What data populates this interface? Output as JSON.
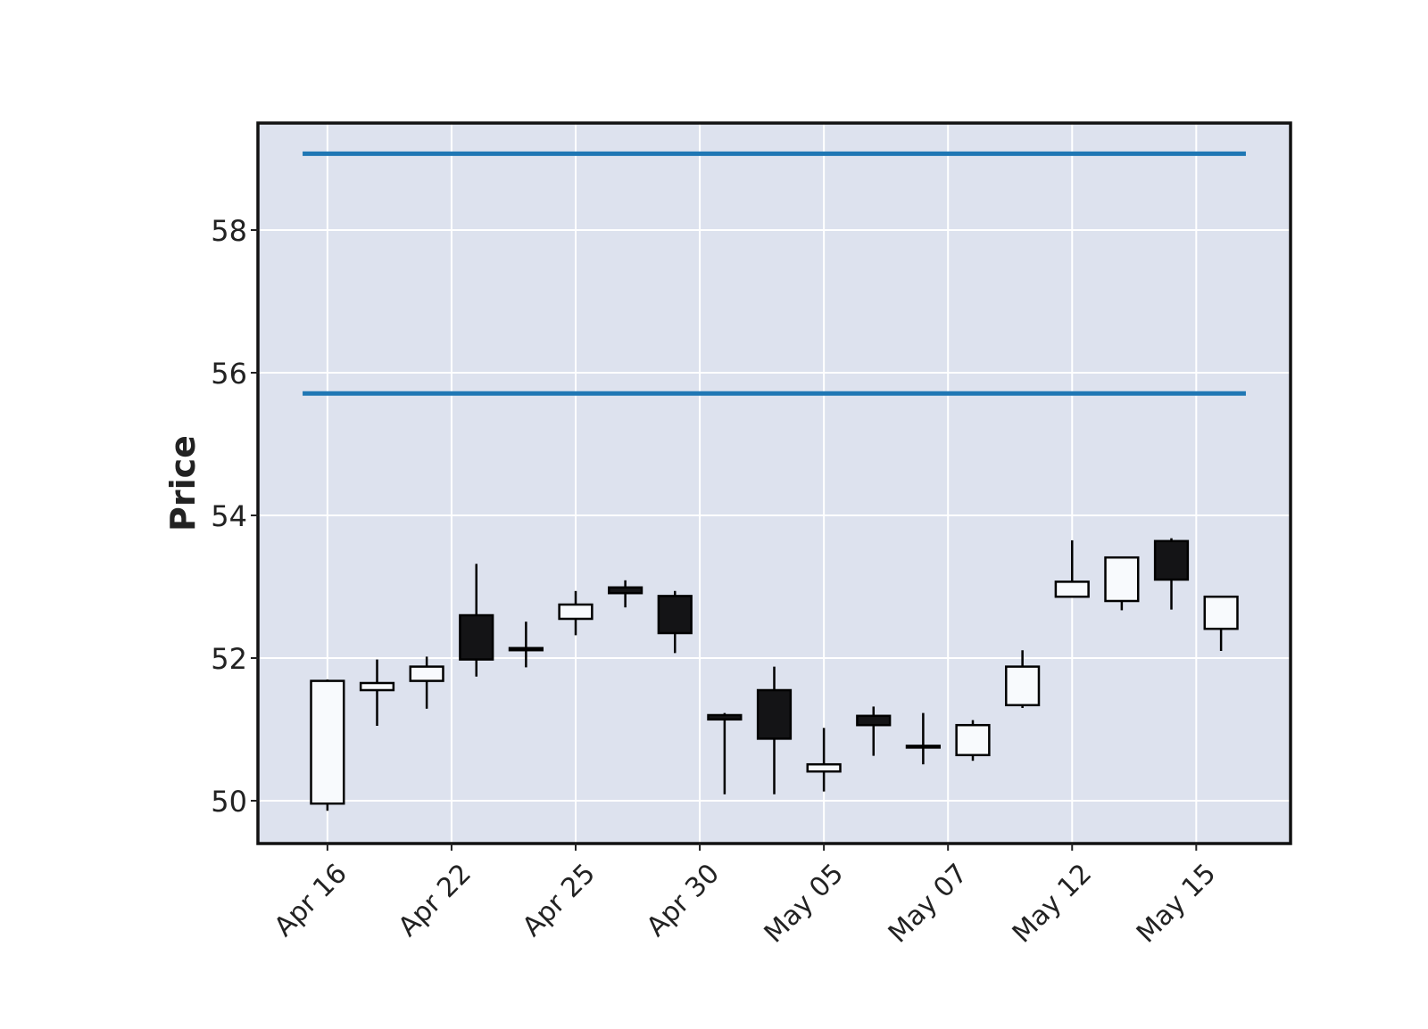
{
  "chart_data": {
    "type": "candlestick",
    "title": "",
    "xlabel": "",
    "ylabel": "Price",
    "ylim": [
      49.4,
      59.5
    ],
    "grid": true,
    "background_color": "#dde2ee",
    "up_color": "#f8fafd",
    "down_color": "#141416",
    "hline_color": "#1f77b4",
    "hlines": [
      59.07,
      55.71
    ],
    "yticks": [
      50,
      52,
      54,
      56,
      58
    ],
    "xtick_labels": [
      "Apr 16",
      "Apr 22",
      "Apr 25",
      "Apr 30",
      "May 05",
      "May 07",
      "May 12",
      "May 15"
    ],
    "xtick_indices": [
      0,
      2.5,
      5,
      7.5,
      10,
      12.5,
      15,
      17.5
    ],
    "candles": [
      {
        "open": 49.96,
        "high": 51.7,
        "low": 49.86,
        "close": 51.68
      },
      {
        "open": 51.55,
        "high": 51.98,
        "low": 51.05,
        "close": 51.65
      },
      {
        "open": 51.68,
        "high": 52.02,
        "low": 51.29,
        "close": 51.88
      },
      {
        "open": 52.6,
        "high": 53.32,
        "low": 51.74,
        "close": 51.98
      },
      {
        "open": 52.14,
        "high": 52.51,
        "low": 51.87,
        "close": 52.11
      },
      {
        "open": 52.55,
        "high": 52.94,
        "low": 52.32,
        "close": 52.75
      },
      {
        "open": 52.99,
        "high": 53.09,
        "low": 52.71,
        "close": 52.91
      },
      {
        "open": 52.87,
        "high": 52.94,
        "low": 52.07,
        "close": 52.35
      },
      {
        "open": 51.2,
        "high": 51.23,
        "low": 50.09,
        "close": 51.14
      },
      {
        "open": 51.55,
        "high": 51.88,
        "low": 50.09,
        "close": 50.87
      },
      {
        "open": 50.41,
        "high": 51.02,
        "low": 50.13,
        "close": 50.51
      },
      {
        "open": 51.19,
        "high": 51.32,
        "low": 50.63,
        "close": 51.06
      },
      {
        "open": 50.75,
        "high": 51.23,
        "low": 50.51,
        "close": 50.77
      },
      {
        "open": 50.64,
        "high": 51.13,
        "low": 50.56,
        "close": 51.06
      },
      {
        "open": 51.34,
        "high": 52.11,
        "low": 51.3,
        "close": 51.88
      },
      {
        "open": 52.86,
        "high": 53.65,
        "low": 52.86,
        "close": 53.07
      },
      {
        "open": 52.8,
        "high": 53.41,
        "low": 52.67,
        "close": 53.41
      },
      {
        "open": 53.64,
        "high": 53.68,
        "low": 52.68,
        "close": 53.1
      },
      {
        "open": 52.41,
        "high": 52.86,
        "low": 52.1,
        "close": 52.86
      }
    ]
  }
}
